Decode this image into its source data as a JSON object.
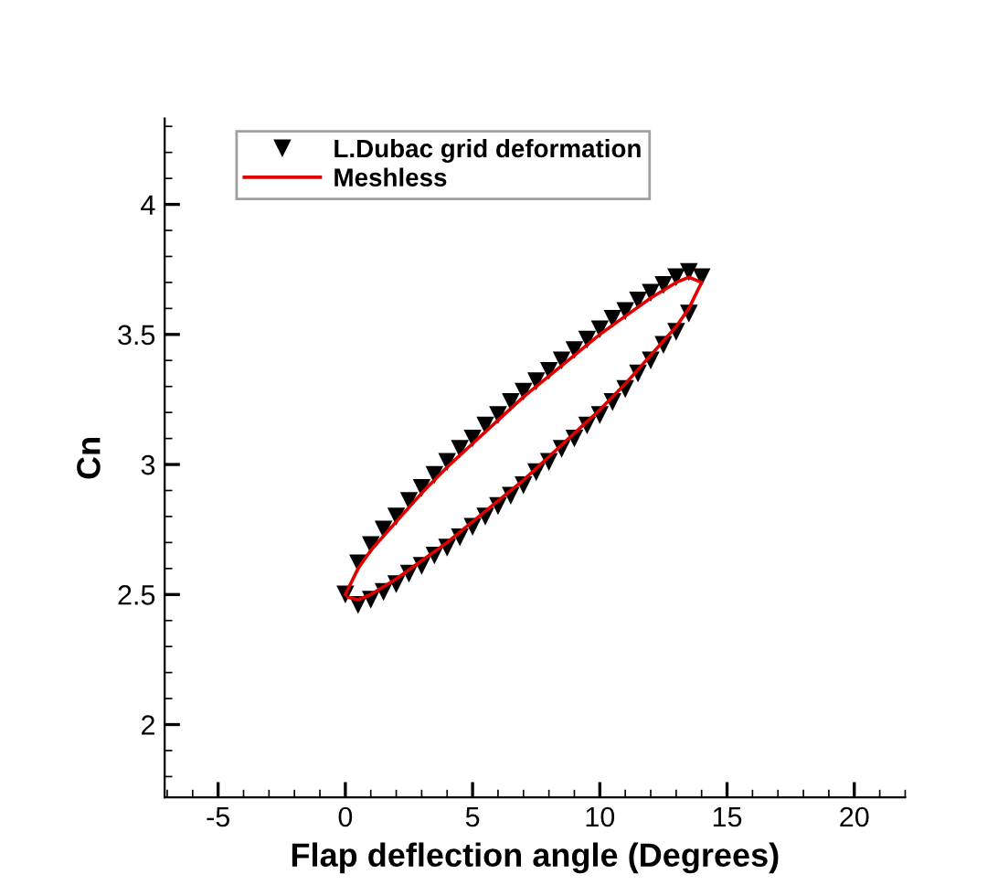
{
  "chart_data": {
    "type": "scatter",
    "xlabel": "Flap deflection angle (Degrees)",
    "ylabel": "Cn",
    "xlim": [
      -7.1,
      22
    ],
    "ylim": [
      1.72,
      4.33
    ],
    "xticks": [
      -5,
      0,
      5,
      10,
      15,
      20
    ],
    "yticks": [
      2,
      2.5,
      3,
      3.5,
      4
    ],
    "grid": false,
    "legend": "top left",
    "series": [
      {
        "name": "L.Dubac grid deformation",
        "marker": "triangle",
        "color": "#000000",
        "x": [
          0,
          0.5,
          1,
          1.5,
          2,
          2.5,
          3,
          3.5,
          4,
          4.5,
          5,
          5.5,
          6,
          6.5,
          7,
          7.5,
          8,
          8.5,
          9,
          9.5,
          10,
          10.5,
          11,
          11.5,
          12,
          12.5,
          13,
          13.5,
          14,
          13.5,
          13,
          12.5,
          12,
          11.5,
          11,
          10.5,
          10,
          9.5,
          9,
          8.5,
          8,
          7.5,
          7,
          6.5,
          6,
          5.5,
          5,
          4.5,
          4,
          3.5,
          3,
          2.5,
          2,
          1.5,
          1,
          0.5
        ],
        "values": [
          2.5,
          2.62,
          2.69,
          2.75,
          2.8,
          2.86,
          2.91,
          2.96,
          3.01,
          3.06,
          3.1,
          3.15,
          3.19,
          3.24,
          3.28,
          3.32,
          3.36,
          3.4,
          3.44,
          3.48,
          3.52,
          3.56,
          3.59,
          3.63,
          3.66,
          3.69,
          3.72,
          3.74,
          3.72,
          3.58,
          3.51,
          3.46,
          3.4,
          3.35,
          3.29,
          3.24,
          3.19,
          3.15,
          3.1,
          3.06,
          3.01,
          2.97,
          2.92,
          2.88,
          2.84,
          2.8,
          2.76,
          2.72,
          2.68,
          2.65,
          2.61,
          2.58,
          2.54,
          2.51,
          2.48,
          2.46
        ]
      },
      {
        "name": "Meshless",
        "type": "line",
        "marker": "none",
        "line_style": "solid",
        "color": "#e00000",
        "x": [
          0,
          0.5,
          1,
          2,
          3,
          4,
          5,
          6,
          7,
          8,
          9,
          10,
          11,
          12,
          13,
          13.5,
          14,
          13.5,
          13,
          12,
          11,
          10,
          9,
          8,
          7,
          6,
          5,
          4,
          3,
          2,
          1,
          0.5,
          0.1
        ],
        "values": [
          2.5,
          2.6,
          2.67,
          2.78,
          2.89,
          2.99,
          3.08,
          3.17,
          3.26,
          3.34,
          3.42,
          3.5,
          3.57,
          3.64,
          3.7,
          3.72,
          3.7,
          3.6,
          3.53,
          3.42,
          3.31,
          3.21,
          3.12,
          3.03,
          2.94,
          2.86,
          2.78,
          2.7,
          2.63,
          2.56,
          2.5,
          2.48,
          2.49
        ]
      }
    ]
  }
}
